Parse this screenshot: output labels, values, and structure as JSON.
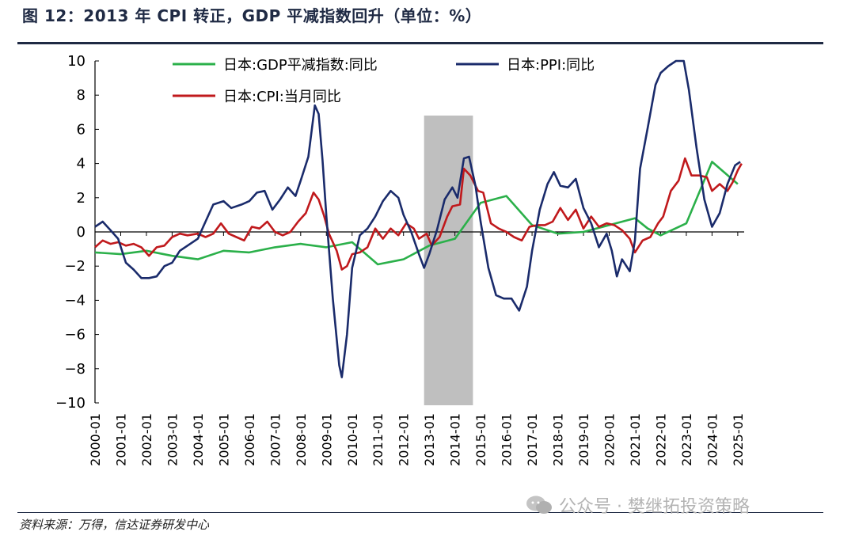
{
  "header": {
    "title": "图 12：2013 年 CPI 转正，GDP 平减指数回升（单位：%）"
  },
  "footer": {
    "source": "资料来源：万得，信达证券研发中心",
    "watermark": "公众号 · 樊继拓投资策略"
  },
  "colors": {
    "gdp": "#2bb04a",
    "ppi": "#1a2b6b",
    "cpi": "#c0191c",
    "shade": "#bfbfbf",
    "rule": "#1f2a44"
  },
  "chart_data": {
    "type": "line",
    "title": "",
    "ylim": [
      -10,
      10
    ],
    "yticks": [
      10,
      8,
      6,
      4,
      2,
      0,
      -2,
      -4,
      -6,
      -8,
      -10
    ],
    "ytick_labels": [
      "10",
      "8",
      "6",
      "4",
      "2",
      "0",
      "−2",
      "−4",
      "−6",
      "−8",
      "−10"
    ],
    "xlim": [
      2000.0,
      2025.25
    ],
    "xticks": [
      "2000-01",
      "2001-01",
      "2002-01",
      "2003-01",
      "2004-01",
      "2005-01",
      "2006-01",
      "2007-01",
      "2008-01",
      "2009-01",
      "2010-01",
      "2011-01",
      "2012-01",
      "2013-01",
      "2014-01",
      "2015-01",
      "2016-01",
      "2017-01",
      "2018-01",
      "2019-01",
      "2020-01",
      "2021-01",
      "2022-01",
      "2023-01",
      "2024-01",
      "2025-01"
    ],
    "grid": false,
    "legend_position": "top",
    "shaded_region": [
      2012.8,
      2014.7
    ],
    "series": [
      {
        "name": "日本:GDP平减指数:同比",
        "color_key": "gdp",
        "points": [
          [
            2000.0,
            -1.2
          ],
          [
            2001.0,
            -1.3
          ],
          [
            2002.0,
            -1.1
          ],
          [
            2003.0,
            -1.4
          ],
          [
            2004.0,
            -1.6
          ],
          [
            2005.0,
            -1.1
          ],
          [
            2006.0,
            -1.2
          ],
          [
            2007.0,
            -0.9
          ],
          [
            2008.0,
            -0.7
          ],
          [
            2009.0,
            -0.9
          ],
          [
            2010.0,
            -0.6
          ],
          [
            2011.0,
            -1.9
          ],
          [
            2012.0,
            -1.6
          ],
          [
            2013.0,
            -0.8
          ],
          [
            2014.0,
            -0.4
          ],
          [
            2015.0,
            1.7
          ],
          [
            2016.0,
            2.1
          ],
          [
            2017.0,
            0.4
          ],
          [
            2018.0,
            -0.1
          ],
          [
            2019.0,
            0.0
          ],
          [
            2020.0,
            0.4
          ],
          [
            2021.0,
            0.8
          ],
          [
            2021.5,
            0.2
          ],
          [
            2022.0,
            -0.2
          ],
          [
            2023.0,
            0.5
          ],
          [
            2024.0,
            4.1
          ],
          [
            2025.0,
            2.8
          ]
        ]
      },
      {
        "name": "日本:PPI:同比",
        "color_key": "ppi",
        "points": [
          [
            2000.0,
            0.3
          ],
          [
            2000.3,
            0.6
          ],
          [
            2000.6,
            0.1
          ],
          [
            2000.9,
            -0.4
          ],
          [
            2001.2,
            -1.8
          ],
          [
            2001.5,
            -2.2
          ],
          [
            2001.8,
            -2.7
          ],
          [
            2002.1,
            -2.7
          ],
          [
            2002.4,
            -2.6
          ],
          [
            2002.7,
            -2.0
          ],
          [
            2003.0,
            -1.8
          ],
          [
            2003.3,
            -1.1
          ],
          [
            2003.6,
            -0.8
          ],
          [
            2004.0,
            -0.4
          ],
          [
            2004.3,
            0.6
          ],
          [
            2004.6,
            1.6
          ],
          [
            2005.0,
            1.8
          ],
          [
            2005.3,
            1.4
          ],
          [
            2005.7,
            1.6
          ],
          [
            2006.0,
            1.8
          ],
          [
            2006.3,
            2.3
          ],
          [
            2006.6,
            2.4
          ],
          [
            2006.9,
            1.3
          ],
          [
            2007.2,
            1.9
          ],
          [
            2007.5,
            2.6
          ],
          [
            2007.8,
            2.1
          ],
          [
            2008.0,
            3.0
          ],
          [
            2008.3,
            4.4
          ],
          [
            2008.55,
            7.4
          ],
          [
            2008.7,
            6.9
          ],
          [
            2008.85,
            4.2
          ],
          [
            2009.0,
            0.9
          ],
          [
            2009.25,
            -3.9
          ],
          [
            2009.5,
            -7.8
          ],
          [
            2009.6,
            -8.5
          ],
          [
            2009.8,
            -6.0
          ],
          [
            2010.0,
            -2.1
          ],
          [
            2010.3,
            -0.2
          ],
          [
            2010.6,
            0.2
          ],
          [
            2010.9,
            0.9
          ],
          [
            2011.2,
            1.8
          ],
          [
            2011.5,
            2.4
          ],
          [
            2011.8,
            2.0
          ],
          [
            2012.0,
            1.0
          ],
          [
            2012.3,
            0.0
          ],
          [
            2012.6,
            -1.3
          ],
          [
            2012.8,
            -2.1
          ],
          [
            2013.0,
            -1.3
          ],
          [
            2013.3,
            0.1
          ],
          [
            2013.6,
            1.9
          ],
          [
            2013.9,
            2.6
          ],
          [
            2014.1,
            2.0
          ],
          [
            2014.35,
            4.3
          ],
          [
            2014.55,
            4.4
          ],
          [
            2014.8,
            2.7
          ],
          [
            2015.0,
            0.6
          ],
          [
            2015.3,
            -2.1
          ],
          [
            2015.6,
            -3.7
          ],
          [
            2015.9,
            -3.9
          ],
          [
            2016.2,
            -3.9
          ],
          [
            2016.5,
            -4.6
          ],
          [
            2016.8,
            -3.2
          ],
          [
            2017.0,
            -1.1
          ],
          [
            2017.3,
            1.3
          ],
          [
            2017.6,
            2.8
          ],
          [
            2017.85,
            3.5
          ],
          [
            2018.1,
            2.7
          ],
          [
            2018.4,
            2.6
          ],
          [
            2018.7,
            3.1
          ],
          [
            2019.0,
            1.4
          ],
          [
            2019.3,
            0.5
          ],
          [
            2019.6,
            -0.9
          ],
          [
            2019.9,
            -0.1
          ],
          [
            2020.1,
            -1.1
          ],
          [
            2020.3,
            -2.6
          ],
          [
            2020.5,
            -1.6
          ],
          [
            2020.8,
            -2.3
          ],
          [
            2021.0,
            -0.5
          ],
          [
            2021.2,
            3.7
          ],
          [
            2021.5,
            6.1
          ],
          [
            2021.8,
            8.6
          ],
          [
            2022.0,
            9.3
          ],
          [
            2022.3,
            9.7
          ],
          [
            2022.6,
            10.0
          ],
          [
            2022.9,
            10.0
          ],
          [
            2023.1,
            8.3
          ],
          [
            2023.4,
            4.9
          ],
          [
            2023.7,
            1.9
          ],
          [
            2024.0,
            0.3
          ],
          [
            2024.3,
            1.1
          ],
          [
            2024.6,
            2.8
          ],
          [
            2024.9,
            3.9
          ],
          [
            2025.1,
            4.1
          ]
        ]
      },
      {
        "name": "日本:CPI:当月同比",
        "color_key": "cpi",
        "points": [
          [
            2000.0,
            -0.9
          ],
          [
            2000.3,
            -0.5
          ],
          [
            2000.6,
            -0.7
          ],
          [
            2000.9,
            -0.6
          ],
          [
            2001.2,
            -0.8
          ],
          [
            2001.5,
            -0.7
          ],
          [
            2001.8,
            -0.9
          ],
          [
            2002.1,
            -1.4
          ],
          [
            2002.4,
            -0.9
          ],
          [
            2002.7,
            -0.8
          ],
          [
            2003.0,
            -0.3
          ],
          [
            2003.3,
            -0.1
          ],
          [
            2003.6,
            -0.2
          ],
          [
            2004.0,
            -0.1
          ],
          [
            2004.3,
            -0.3
          ],
          [
            2004.6,
            -0.1
          ],
          [
            2004.9,
            0.5
          ],
          [
            2005.2,
            -0.1
          ],
          [
            2005.5,
            -0.3
          ],
          [
            2005.8,
            -0.5
          ],
          [
            2006.1,
            0.3
          ],
          [
            2006.4,
            0.2
          ],
          [
            2006.7,
            0.6
          ],
          [
            2007.0,
            0.0
          ],
          [
            2007.3,
            -0.2
          ],
          [
            2007.6,
            0.0
          ],
          [
            2007.9,
            0.6
          ],
          [
            2008.2,
            1.1
          ],
          [
            2008.5,
            2.3
          ],
          [
            2008.7,
            1.9
          ],
          [
            2008.9,
            1.0
          ],
          [
            2009.1,
            -0.1
          ],
          [
            2009.4,
            -1.1
          ],
          [
            2009.6,
            -2.2
          ],
          [
            2009.8,
            -2.0
          ],
          [
            2010.0,
            -1.3
          ],
          [
            2010.3,
            -1.2
          ],
          [
            2010.6,
            -0.9
          ],
          [
            2010.9,
            0.2
          ],
          [
            2011.2,
            -0.4
          ],
          [
            2011.5,
            0.2
          ],
          [
            2011.8,
            -0.2
          ],
          [
            2012.1,
            0.5
          ],
          [
            2012.4,
            0.2
          ],
          [
            2012.6,
            -0.4
          ],
          [
            2012.9,
            -0.1
          ],
          [
            2013.1,
            -0.8
          ],
          [
            2013.4,
            -0.3
          ],
          [
            2013.7,
            0.9
          ],
          [
            2013.9,
            1.5
          ],
          [
            2014.2,
            1.6
          ],
          [
            2014.35,
            3.7
          ],
          [
            2014.6,
            3.3
          ],
          [
            2014.9,
            2.4
          ],
          [
            2015.1,
            2.3
          ],
          [
            2015.4,
            0.5
          ],
          [
            2015.7,
            0.2
          ],
          [
            2016.0,
            0.0
          ],
          [
            2016.3,
            -0.3
          ],
          [
            2016.6,
            -0.5
          ],
          [
            2016.9,
            0.3
          ],
          [
            2017.2,
            0.4
          ],
          [
            2017.5,
            0.4
          ],
          [
            2017.8,
            0.6
          ],
          [
            2018.1,
            1.4
          ],
          [
            2018.4,
            0.7
          ],
          [
            2018.7,
            1.3
          ],
          [
            2019.0,
            0.2
          ],
          [
            2019.3,
            0.9
          ],
          [
            2019.6,
            0.3
          ],
          [
            2019.9,
            0.5
          ],
          [
            2020.2,
            0.4
          ],
          [
            2020.5,
            0.1
          ],
          [
            2020.8,
            -0.4
          ],
          [
            2021.0,
            -1.2
          ],
          [
            2021.3,
            -0.5
          ],
          [
            2021.6,
            -0.3
          ],
          [
            2021.9,
            0.5
          ],
          [
            2022.1,
            0.9
          ],
          [
            2022.4,
            2.4
          ],
          [
            2022.7,
            3.0
          ],
          [
            2022.95,
            4.3
          ],
          [
            2023.2,
            3.3
          ],
          [
            2023.5,
            3.3
          ],
          [
            2023.8,
            3.2
          ],
          [
            2024.0,
            2.4
          ],
          [
            2024.3,
            2.8
          ],
          [
            2024.6,
            2.4
          ],
          [
            2024.8,
            2.9
          ],
          [
            2025.0,
            3.6
          ],
          [
            2025.15,
            4.0
          ]
        ]
      }
    ]
  }
}
